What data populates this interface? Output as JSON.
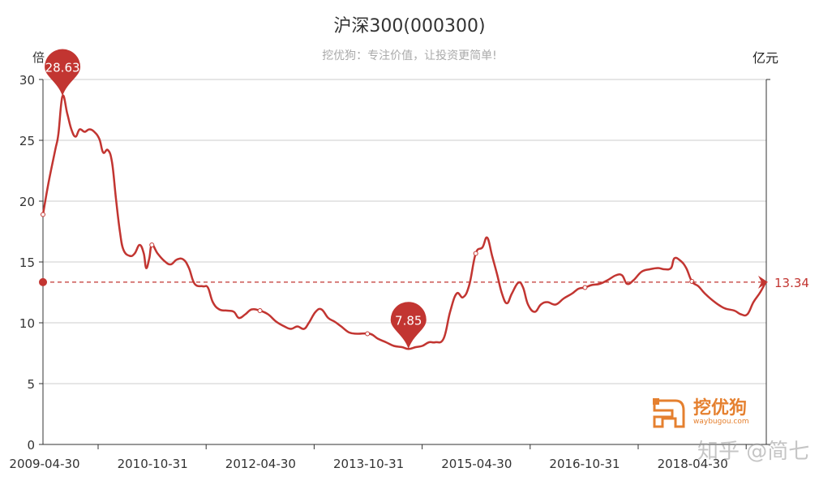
{
  "chart_data": {
    "type": "line",
    "title": "沪深300(000300)",
    "subtitle": "挖优狗：专注价值，让投资更简单!",
    "ylabel": "倍",
    "ylabel_right": "亿元",
    "xlim": [
      "2009-04-30",
      "2019-05-15"
    ],
    "ylim": [
      0,
      30
    ],
    "yticks": [
      0,
      5,
      10,
      15,
      20,
      25,
      30
    ],
    "xtick_labels": [
      "2009-04-30",
      "2010-10-31",
      "2012-04-30",
      "2013-10-31",
      "2015-04-30",
      "2016-10-31",
      "2018-04-30"
    ],
    "grid": true,
    "smooth": true,
    "line_color": "#c23531",
    "series": [
      {
        "points": [
          [
            "2009-04-30",
            18.9
          ],
          [
            "2009-05-28",
            21.5
          ],
          [
            "2009-07-01",
            24.2
          ],
          [
            "2009-07-17",
            25.5
          ],
          [
            "2009-08-07",
            28.63
          ],
          [
            "2009-08-31",
            27.2
          ],
          [
            "2009-09-21",
            25.9
          ],
          [
            "2009-10-12",
            25.3
          ],
          [
            "2009-11-02",
            25.9
          ],
          [
            "2009-11-27",
            25.7
          ],
          [
            "2009-12-21",
            25.9
          ],
          [
            "2010-01-15",
            25.7
          ],
          [
            "2010-02-10",
            25.1
          ],
          [
            "2010-03-01",
            24.0
          ],
          [
            "2010-03-25",
            24.2
          ],
          [
            "2010-04-15",
            23.2
          ],
          [
            "2010-05-05",
            20.2
          ],
          [
            "2010-05-25",
            17.5
          ],
          [
            "2010-06-12",
            16.0
          ],
          [
            "2010-07-14",
            15.5
          ],
          [
            "2010-08-08",
            15.7
          ],
          [
            "2010-09-02",
            16.4
          ],
          [
            "2010-09-23",
            15.7
          ],
          [
            "2010-10-05",
            14.5
          ],
          [
            "2010-10-21",
            15.3
          ],
          [
            "2010-11-03",
            16.4
          ],
          [
            "2010-12-02",
            15.7
          ],
          [
            "2011-01-04",
            15.1
          ],
          [
            "2011-02-06",
            14.8
          ],
          [
            "2011-03-10",
            15.2
          ],
          [
            "2011-04-12",
            15.2
          ],
          [
            "2011-05-10",
            14.5
          ],
          [
            "2011-06-08",
            13.2
          ],
          [
            "2011-07-20",
            13.0
          ],
          [
            "2011-08-14",
            12.9
          ],
          [
            "2011-09-08",
            11.7
          ],
          [
            "2011-10-11",
            11.1
          ],
          [
            "2011-11-21",
            11.0
          ],
          [
            "2011-12-24",
            10.9
          ],
          [
            "2012-01-18",
            10.4
          ],
          [
            "2012-02-20",
            10.7
          ],
          [
            "2012-03-23",
            11.1
          ],
          [
            "2012-05-04",
            11.0
          ],
          [
            "2012-06-14",
            10.7
          ],
          [
            "2012-07-25",
            10.1
          ],
          [
            "2012-09-05",
            9.7
          ],
          [
            "2012-10-08",
            9.5
          ],
          [
            "2012-11-10",
            9.7
          ],
          [
            "2012-12-13",
            9.5
          ],
          [
            "2013-01-07",
            10.0
          ],
          [
            "2013-02-10",
            10.9
          ],
          [
            "2013-03-12",
            11.1
          ],
          [
            "2013-04-15",
            10.4
          ],
          [
            "2013-05-17",
            10.1
          ],
          [
            "2013-06-20",
            9.7
          ],
          [
            "2013-07-31",
            9.2
          ],
          [
            "2013-09-10",
            9.1
          ],
          [
            "2013-11-12",
            9.1
          ],
          [
            "2013-12-22",
            8.7
          ],
          [
            "2014-02-02",
            8.4
          ],
          [
            "2014-03-14",
            8.1
          ],
          [
            "2014-04-24",
            8.0
          ],
          [
            "2014-05-27",
            7.85
          ],
          [
            "2014-07-03",
            8.0
          ],
          [
            "2014-08-05",
            8.1
          ],
          [
            "2014-09-08",
            8.4
          ],
          [
            "2014-10-10",
            8.4
          ],
          [
            "2014-11-21",
            8.7
          ],
          [
            "2014-12-24",
            10.9
          ],
          [
            "2015-01-26",
            12.4
          ],
          [
            "2015-02-28",
            12.1
          ],
          [
            "2015-03-31",
            13.1
          ],
          [
            "2015-05-03",
            15.7
          ],
          [
            "2015-06-06",
            16.2
          ],
          [
            "2015-06-30",
            17.0
          ],
          [
            "2015-07-25",
            15.5
          ],
          [
            "2015-08-19",
            14.0
          ],
          [
            "2015-09-13",
            12.4
          ],
          [
            "2015-10-08",
            11.6
          ],
          [
            "2015-11-02",
            12.4
          ],
          [
            "2015-12-05",
            13.3
          ],
          [
            "2015-12-29",
            12.9
          ],
          [
            "2016-01-23",
            11.5
          ],
          [
            "2016-02-26",
            10.9
          ],
          [
            "2016-03-28",
            11.5
          ],
          [
            "2016-04-30",
            11.7
          ],
          [
            "2016-06-11",
            11.5
          ],
          [
            "2016-07-22",
            12.0
          ],
          [
            "2016-09-02",
            12.4
          ],
          [
            "2016-10-05",
            12.8
          ],
          [
            "2016-11-07",
            12.9
          ],
          [
            "2016-12-10",
            13.1
          ],
          [
            "2017-01-20",
            13.2
          ],
          [
            "2017-03-01",
            13.5
          ],
          [
            "2017-04-12",
            13.9
          ],
          [
            "2017-05-14",
            13.9
          ],
          [
            "2017-06-08",
            13.2
          ],
          [
            "2017-07-11",
            13.5
          ],
          [
            "2017-08-21",
            14.2
          ],
          [
            "2017-10-02",
            14.4
          ],
          [
            "2017-11-12",
            14.5
          ],
          [
            "2017-12-15",
            14.4
          ],
          [
            "2018-01-17",
            14.5
          ],
          [
            "2018-02-03",
            15.3
          ],
          [
            "2018-03-06",
            15.1
          ],
          [
            "2018-04-04",
            14.5
          ],
          [
            "2018-05-03",
            13.4
          ],
          [
            "2018-06-05",
            13.0
          ],
          [
            "2018-07-08",
            12.4
          ],
          [
            "2018-08-27",
            11.7
          ],
          [
            "2018-10-15",
            11.2
          ],
          [
            "2018-12-04",
            11.0
          ],
          [
            "2019-01-06",
            10.7
          ],
          [
            "2019-02-08",
            10.7
          ],
          [
            "2019-03-11",
            11.7
          ],
          [
            "2019-04-14",
            12.5
          ],
          [
            "2019-05-12",
            13.34
          ]
        ],
        "symbol_points": [
          [
            "2009-04-30",
            18.9
          ],
          [
            "2010-11-03",
            16.4
          ],
          [
            "2012-05-04",
            11.0
          ],
          [
            "2013-10-31",
            9.1
          ],
          [
            "2015-05-03",
            15.7
          ],
          [
            "2016-11-07",
            12.9
          ],
          [
            "2018-05-03",
            13.4
          ]
        ]
      }
    ],
    "mark_points": [
      {
        "label": "28.63",
        "date": "2009-08-07",
        "value": 28.63,
        "type": "max"
      },
      {
        "label": "7.85",
        "date": "2014-05-27",
        "value": 7.85,
        "type": "min"
      }
    ],
    "mark_line": {
      "label": "13.34",
      "value": 13.34
    }
  },
  "logo": {
    "name": "挖优狗",
    "url": "waybugou.com"
  },
  "watermark": "知乎 @简七"
}
